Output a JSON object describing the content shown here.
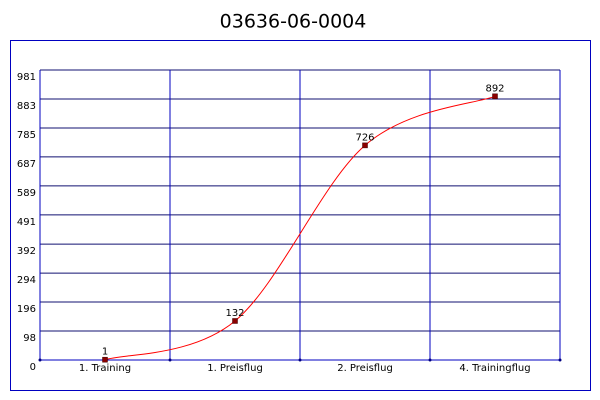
{
  "chart_data": {
    "type": "line",
    "title": "03636-06-0004",
    "categories": [
      "1. Training",
      "1. Preisflug",
      "2. Preisflug",
      "4. Trainingflug"
    ],
    "values": [
      1,
      132,
      726,
      892
    ],
    "color": "#ff0000",
    "marker_color": "#8b0000",
    "grid_color": "#0000c0",
    "ylim": [
      0,
      981
    ],
    "yticks": [
      0,
      98,
      196,
      294,
      392,
      491,
      589,
      687,
      785,
      883,
      981
    ],
    "grid": true,
    "smooth": true
  }
}
